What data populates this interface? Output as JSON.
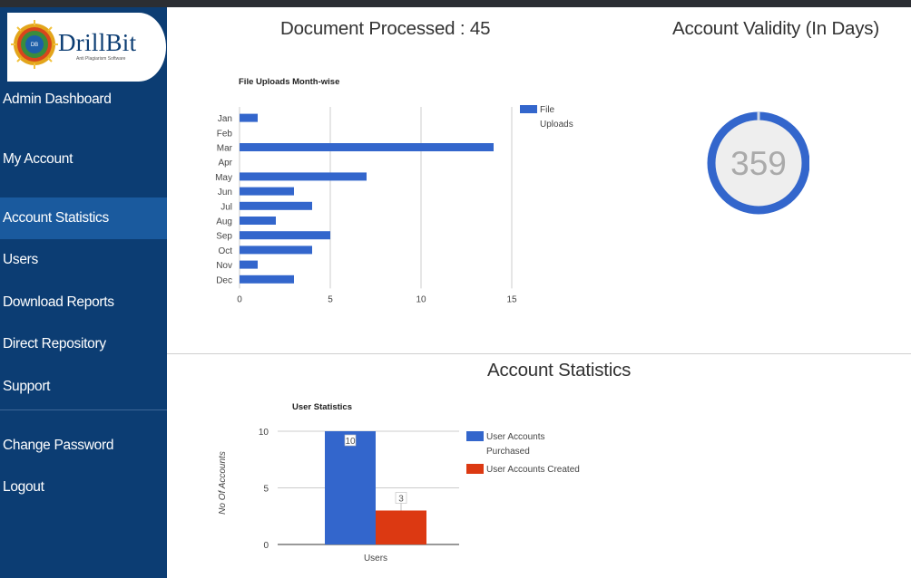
{
  "brand": {
    "name": "DrillBit",
    "tagline": "Anti Plagiarism Software",
    "badge": "DB"
  },
  "sidebar": {
    "items": [
      {
        "label": "Admin Dashboard"
      },
      {
        "label": "My Account"
      },
      {
        "label": "Account Statistics",
        "active": true
      },
      {
        "label": "Users"
      },
      {
        "label": "Download Reports"
      },
      {
        "label": "Direct Repository"
      },
      {
        "label": "Support"
      },
      {
        "label": "Change Password"
      },
      {
        "label": "Logout"
      }
    ]
  },
  "main": {
    "documents_processed": "Document Processed : 45",
    "account_validity_title": "Account Validity (In Days)",
    "validity_days": "359",
    "account_stats_title": "Account Statistics"
  },
  "colors": {
    "sidebar": "#0c3d73",
    "active": "#1a5a9e",
    "blue": "#3366cc",
    "red": "#dc3912"
  },
  "chart_data": [
    {
      "type": "bar",
      "orientation": "horizontal",
      "title": "File Uploads Month-wise",
      "categories": [
        "Jan",
        "Feb",
        "Mar",
        "Apr",
        "May",
        "Jun",
        "Jul",
        "Aug",
        "Sep",
        "Oct",
        "Nov",
        "Dec"
      ],
      "series": [
        {
          "name": "File Uploads",
          "values": [
            1,
            0,
            14,
            0,
            7,
            3,
            4,
            2,
            5,
            4,
            1,
            3
          ]
        }
      ],
      "xlim": [
        0,
        15
      ],
      "xticks": [
        "0",
        "5",
        "10",
        "15"
      ],
      "grid": true,
      "legend": "right"
    },
    {
      "type": "bar",
      "title": "User Statistics",
      "categories": [
        "Users"
      ],
      "series": [
        {
          "name": "User Accounts Purchased",
          "values": [
            10
          ]
        },
        {
          "name": "User Accounts Created",
          "values": [
            3
          ]
        }
      ],
      "ylabel": "No Of Accounts",
      "ylim": [
        0,
        10
      ],
      "yticks": [
        "10",
        "5",
        "0"
      ],
      "data_labels": [
        "10",
        "3"
      ],
      "grid": true,
      "legend": "right"
    }
  ]
}
